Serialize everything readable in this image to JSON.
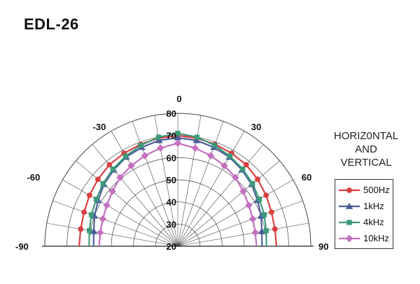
{
  "chart_data": {
    "type": "polar",
    "title": "EDL-26",
    "subtitle_lines": [
      "HORIZ0NTAL",
      "AND",
      "VERTICAL"
    ],
    "angle_ticks": [
      {
        "angle": -90,
        "label": "-90"
      },
      {
        "angle": -60,
        "label": "-60"
      },
      {
        "angle": -30,
        "label": "-30"
      },
      {
        "angle": 0,
        "label": "0"
      },
      {
        "angle": 30,
        "label": "30"
      },
      {
        "angle": 60,
        "label": "60"
      },
      {
        "angle": 90,
        "label": "90"
      }
    ],
    "radial_ticks": [
      20,
      30,
      40,
      50,
      60,
      70,
      80
    ],
    "rlim": [
      20,
      80
    ],
    "angle_range": [
      -90,
      90
    ],
    "grid": true,
    "legend_position": "right",
    "angles": [
      -90,
      -80,
      -70,
      -60,
      -50,
      -40,
      -30,
      -20,
      -10,
      0,
      10,
      20,
      30,
      40,
      50,
      60,
      70,
      80,
      90
    ],
    "series": [
      {
        "name": "500Hz",
        "color": "#d94040",
        "marker": "circle",
        "values": [
          64.5,
          64.5,
          65,
          66,
          67,
          68,
          68.5,
          69,
          69.5,
          70,
          69.5,
          69,
          68.5,
          68,
          67,
          66,
          65,
          64.5,
          64.5
        ]
      },
      {
        "name": "1kHz",
        "color": "#4a5e9a",
        "marker": "triangle",
        "values": [
          58,
          58.5,
          60,
          61.5,
          63.5,
          65,
          66.5,
          67.5,
          68.5,
          69,
          68.5,
          67.5,
          66.5,
          65,
          63.5,
          61.5,
          60,
          58.5,
          58
        ]
      },
      {
        "name": "4kHz",
        "color": "#3e9a78",
        "marker": "square",
        "values": [
          60,
          60.5,
          61.5,
          62.5,
          64,
          65.5,
          67,
          68.5,
          70,
          71,
          70,
          68.5,
          67,
          65.5,
          64,
          62.5,
          61.5,
          60.5,
          60
        ]
      },
      {
        "name": "10kHz",
        "color": "#c46fbf",
        "marker": "diamond",
        "values": [
          55.5,
          55.5,
          56,
          57,
          58.5,
          60.5,
          62,
          63.5,
          65,
          66.5,
          65,
          63.5,
          62,
          60.5,
          58.5,
          57,
          56,
          55.5,
          55.5
        ]
      }
    ]
  }
}
